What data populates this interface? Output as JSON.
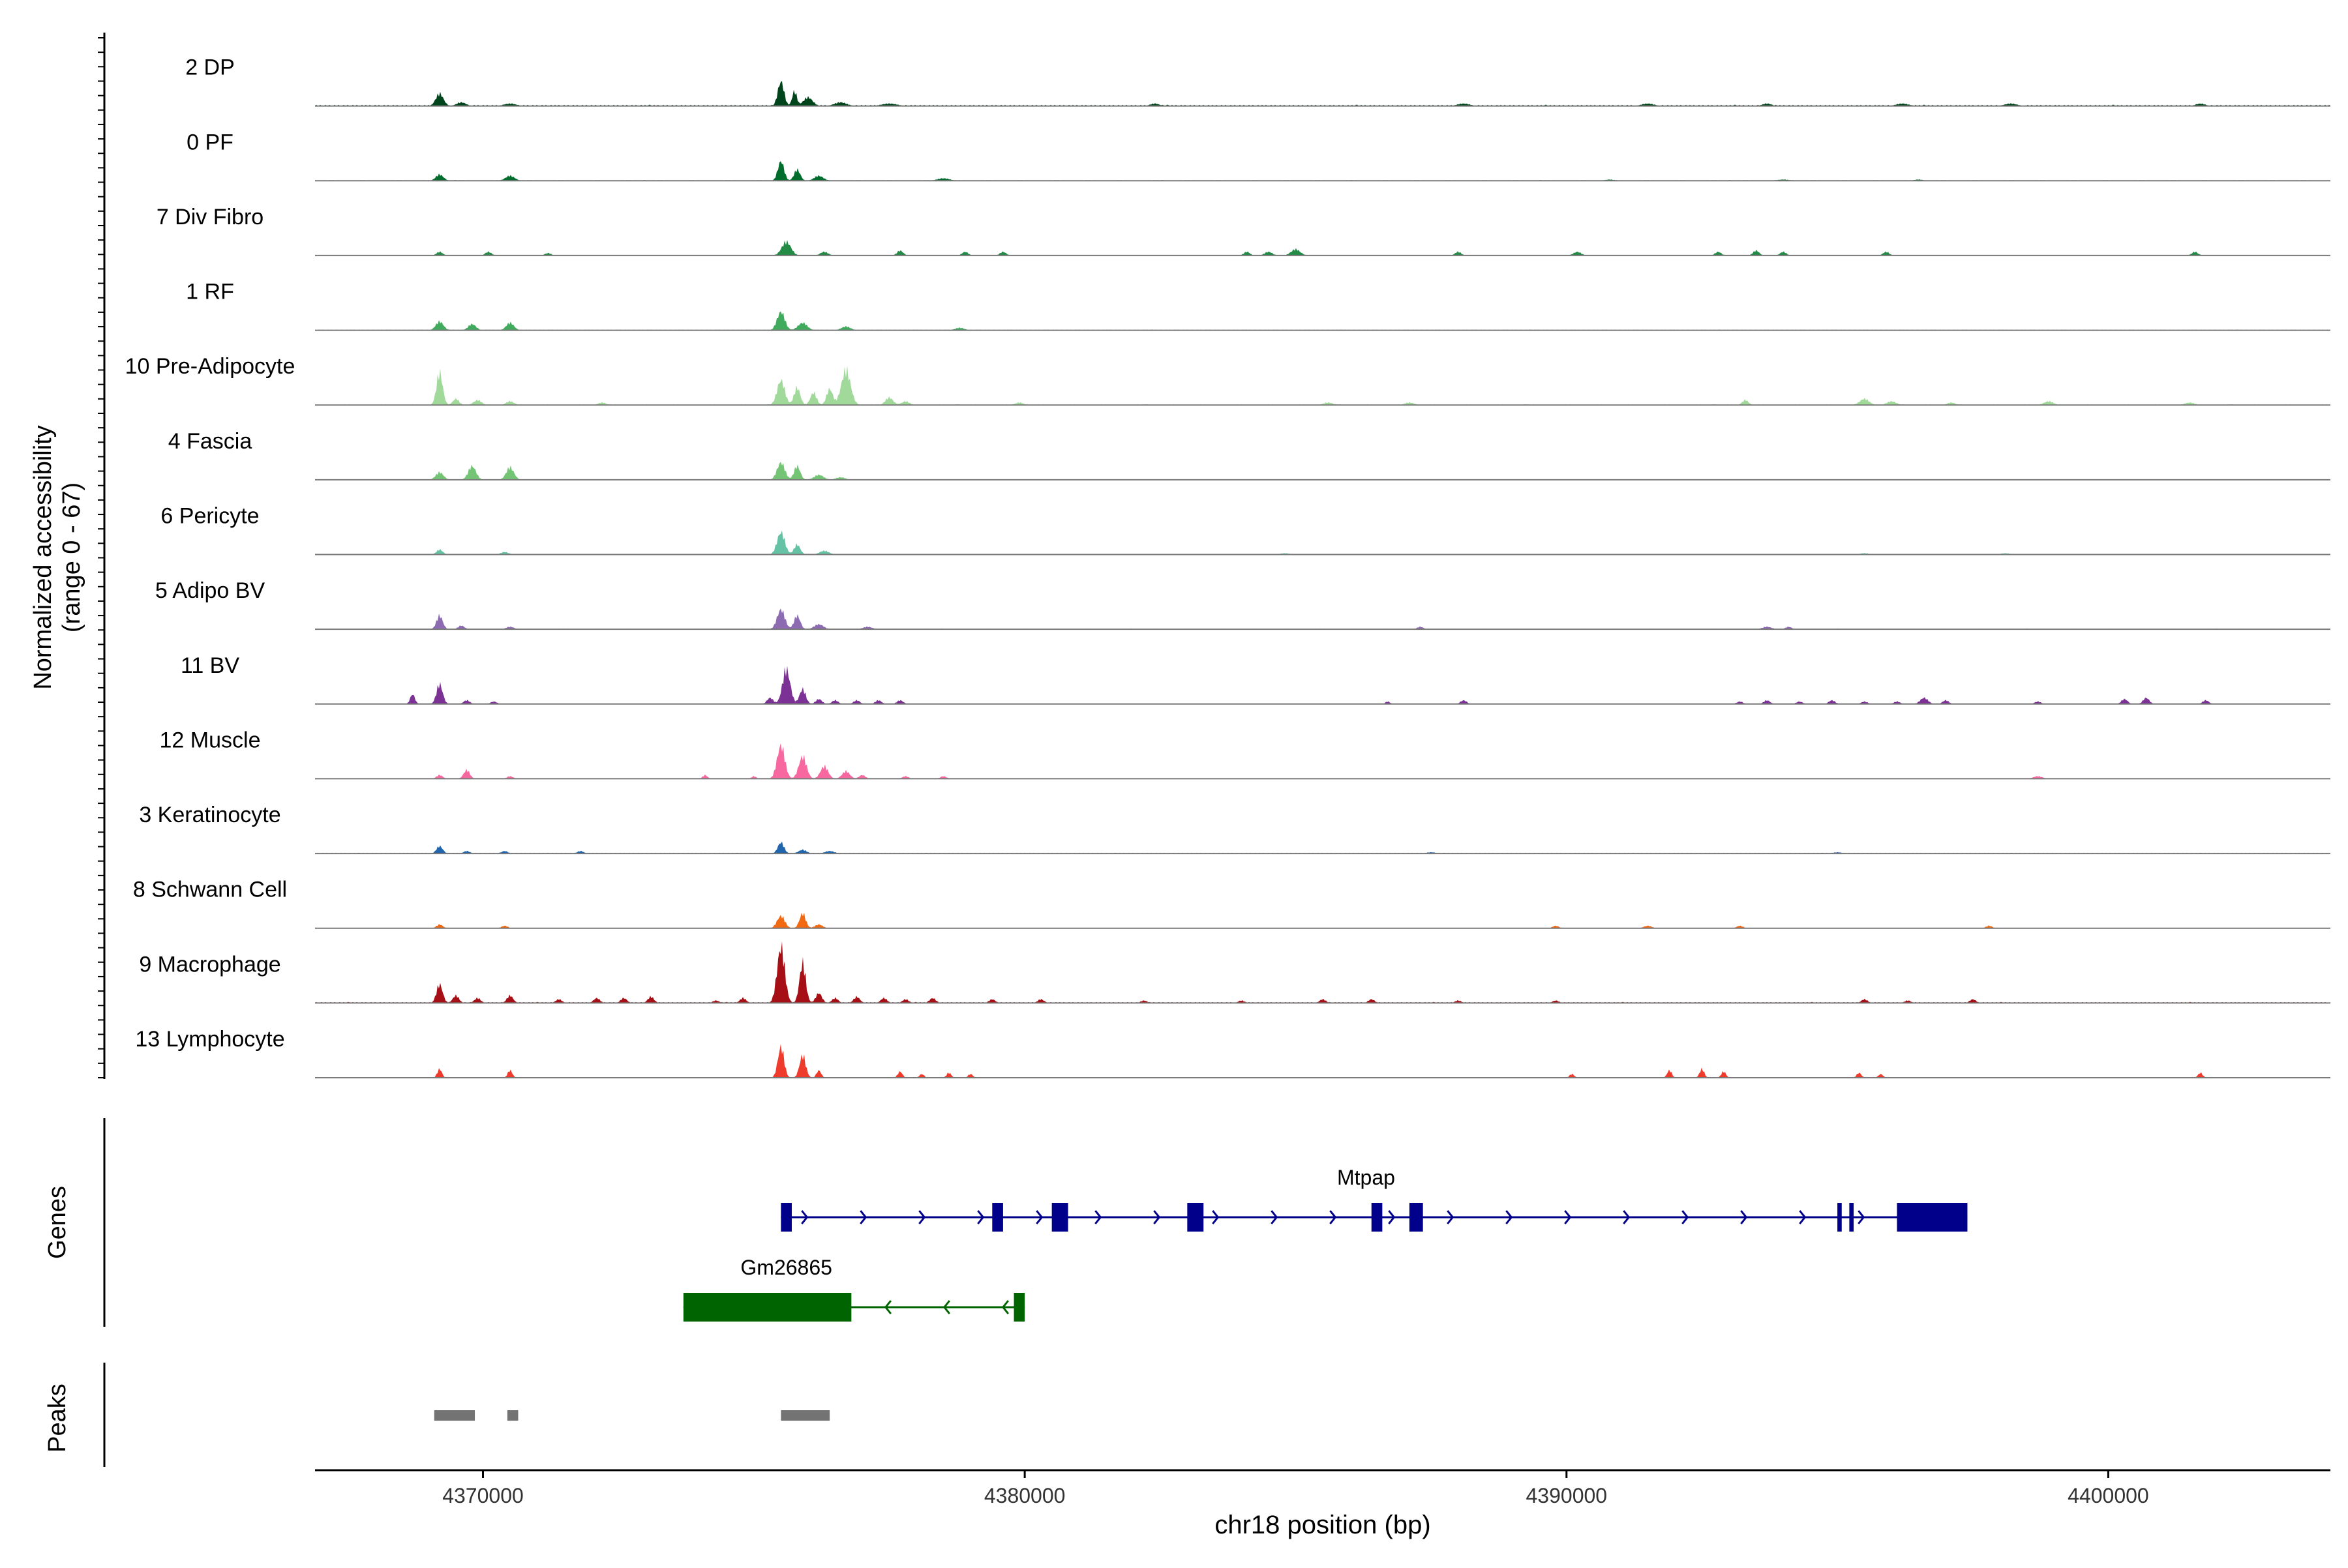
{
  "chart_data": {
    "type": "area",
    "title": "",
    "chromosome": "chr18",
    "xlabel": "chr18 position (bp)",
    "ylabel": "Normalized accessibility",
    "ylabel_range": "(range 0 - 67)",
    "ylim": [
      0,
      67
    ],
    "xlim": [
      4366900,
      4404100
    ],
    "x_ticks": [
      4370000,
      4380000,
      4390000,
      4400000
    ],
    "x_tick_labels": [
      "4370000",
      "4380000",
      "4390000",
      "4400000"
    ],
    "grid": false,
    "legend": "none",
    "track_labels": {
      "genes": "Genes",
      "peaks": "Peaks"
    },
    "series": [
      {
        "name": "2 DP",
        "color": "#00441b",
        "peaks": [
          [
            4369200,
            10,
            250
          ],
          [
            4369600,
            3,
            300
          ],
          [
            4370500,
            2,
            400
          ],
          [
            4375500,
            20,
            200
          ],
          [
            4375750,
            12,
            150
          ],
          [
            4376000,
            7,
            300
          ],
          [
            4376600,
            3,
            400
          ],
          [
            4377500,
            2,
            500
          ],
          [
            4382400,
            2,
            300
          ],
          [
            4388100,
            2,
            400
          ],
          [
            4391500,
            2,
            400
          ],
          [
            4393700,
            2,
            300
          ],
          [
            4396200,
            2,
            400
          ],
          [
            4398200,
            2,
            400
          ],
          [
            4401700,
            2,
            300
          ]
        ],
        "baseline": 1
      },
      {
        "name": "0 PF",
        "color": "#006d2c",
        "peaks": [
          [
            4369200,
            5,
            250
          ],
          [
            4370500,
            4,
            300
          ],
          [
            4375500,
            16,
            200
          ],
          [
            4375800,
            9,
            200
          ],
          [
            4376200,
            4,
            300
          ],
          [
            4378500,
            2,
            400
          ],
          [
            4390800,
            1,
            300
          ],
          [
            4394000,
            1,
            400
          ],
          [
            4396500,
            1,
            300
          ]
        ],
        "baseline": 0.6
      },
      {
        "name": "7 Div Fibro",
        "color": "#238b45",
        "peaks": [
          [
            4369200,
            3,
            200
          ],
          [
            4370100,
            3,
            200
          ],
          [
            4371200,
            2,
            200
          ],
          [
            4375600,
            11,
            300
          ],
          [
            4376300,
            3,
            250
          ],
          [
            4377700,
            4,
            200
          ],
          [
            4378900,
            3,
            200
          ],
          [
            4379600,
            3,
            200
          ],
          [
            4384100,
            3,
            200
          ],
          [
            4384500,
            3,
            250
          ],
          [
            4385000,
            5,
            300
          ],
          [
            4388000,
            3,
            200
          ],
          [
            4390200,
            3,
            250
          ],
          [
            4392800,
            3,
            200
          ],
          [
            4393500,
            4,
            200
          ],
          [
            4394000,
            3,
            200
          ],
          [
            4395900,
            3,
            200
          ],
          [
            4401600,
            3,
            200
          ]
        ],
        "baseline": 0.5
      },
      {
        "name": "1 RF",
        "color": "#41ab5d",
        "peaks": [
          [
            4369200,
            7,
            250
          ],
          [
            4369800,
            5,
            250
          ],
          [
            4370500,
            6,
            250
          ],
          [
            4375500,
            15,
            250
          ],
          [
            4375900,
            6,
            300
          ],
          [
            4376700,
            3,
            300
          ],
          [
            4378800,
            2,
            300
          ]
        ],
        "baseline": 0.6
      },
      {
        "name": "10 Pre-Adipocyte",
        "color": "#a1d99b",
        "peaks": [
          [
            4369200,
            26,
            200
          ],
          [
            4369500,
            5,
            200
          ],
          [
            4369900,
            4,
            250
          ],
          [
            4370500,
            3,
            250
          ],
          [
            4372200,
            2,
            250
          ],
          [
            4375500,
            20,
            250
          ],
          [
            4375800,
            14,
            200
          ],
          [
            4376100,
            10,
            200
          ],
          [
            4376400,
            13,
            200
          ],
          [
            4376700,
            28,
            300
          ],
          [
            4377500,
            6,
            250
          ],
          [
            4377800,
            3,
            250
          ],
          [
            4379900,
            2,
            250
          ],
          [
            4385600,
            2,
            300
          ],
          [
            4387100,
            2,
            300
          ],
          [
            4393300,
            4,
            200
          ],
          [
            4395500,
            5,
            300
          ],
          [
            4396000,
            3,
            300
          ],
          [
            4397100,
            2,
            250
          ],
          [
            4398900,
            3,
            300
          ],
          [
            4401500,
            2,
            300
          ]
        ],
        "baseline": 0.6
      },
      {
        "name": "4 Fascia",
        "color": "#74c476",
        "peaks": [
          [
            4369200,
            6,
            250
          ],
          [
            4369800,
            11,
            250
          ],
          [
            4370500,
            10,
            250
          ],
          [
            4375500,
            14,
            250
          ],
          [
            4375800,
            11,
            200
          ],
          [
            4376200,
            4,
            300
          ],
          [
            4376600,
            2,
            300
          ]
        ],
        "baseline": 0.5
      },
      {
        "name": "6 Pericyte",
        "color": "#66c2a4",
        "peaks": [
          [
            4369200,
            4,
            200
          ],
          [
            4370400,
            2,
            250
          ],
          [
            4375500,
            18,
            250
          ],
          [
            4375800,
            8,
            200
          ],
          [
            4376300,
            3,
            300
          ],
          [
            4384800,
            1,
            300
          ],
          [
            4395500,
            1,
            300
          ],
          [
            4398100,
            1,
            300
          ]
        ],
        "baseline": 0.5
      },
      {
        "name": "5 Adipo BV",
        "color": "#8c6bb1",
        "peaks": [
          [
            4369200,
            11,
            200
          ],
          [
            4369600,
            3,
            200
          ],
          [
            4370500,
            2,
            250
          ],
          [
            4375500,
            16,
            250
          ],
          [
            4375800,
            11,
            200
          ],
          [
            4376200,
            4,
            300
          ],
          [
            4377100,
            2,
            300
          ],
          [
            4387300,
            2,
            200
          ],
          [
            4393700,
            2,
            300
          ],
          [
            4394100,
            2,
            200
          ]
        ],
        "baseline": 0.5
      },
      {
        "name": "11 BV",
        "color": "#7b3294",
        "peaks": [
          [
            4368700,
            8,
            150
          ],
          [
            4369200,
            16,
            200
          ],
          [
            4369700,
            3,
            200
          ],
          [
            4370200,
            2,
            200
          ],
          [
            4375300,
            5,
            200
          ],
          [
            4375600,
            28,
            250
          ],
          [
            4375900,
            12,
            200
          ],
          [
            4376200,
            4,
            200
          ],
          [
            4376500,
            3,
            200
          ],
          [
            4376900,
            3,
            200
          ],
          [
            4377300,
            3,
            200
          ],
          [
            4377700,
            3,
            200
          ],
          [
            4386700,
            2,
            150
          ],
          [
            4388100,
            3,
            200
          ],
          [
            4393200,
            2,
            200
          ],
          [
            4393700,
            3,
            200
          ],
          [
            4394300,
            2,
            200
          ],
          [
            4394900,
            3,
            200
          ],
          [
            4395500,
            2,
            200
          ],
          [
            4396100,
            2,
            200
          ],
          [
            4396600,
            5,
            250
          ],
          [
            4397000,
            3,
            200
          ],
          [
            4398700,
            2,
            200
          ],
          [
            4400300,
            4,
            200
          ],
          [
            4400700,
            5,
            200
          ],
          [
            4401800,
            3,
            200
          ]
        ],
        "baseline": 0.4
      },
      {
        "name": "12 Muscle",
        "color": "#f768a1",
        "peaks": [
          [
            4369200,
            3,
            200
          ],
          [
            4369700,
            7,
            200
          ],
          [
            4370500,
            2,
            200
          ],
          [
            4374100,
            3,
            150
          ],
          [
            4375000,
            2,
            150
          ],
          [
            4375500,
            27,
            250
          ],
          [
            4375900,
            18,
            250
          ],
          [
            4376300,
            10,
            250
          ],
          [
            4376700,
            6,
            250
          ],
          [
            4377000,
            3,
            200
          ],
          [
            4377800,
            2,
            200
          ],
          [
            4378500,
            2,
            200
          ],
          [
            4398700,
            2,
            300
          ]
        ],
        "baseline": 0.4
      },
      {
        "name": "3 Keratinocyte",
        "color": "#2166ac",
        "peaks": [
          [
            4369200,
            6,
            200
          ],
          [
            4369700,
            2,
            200
          ],
          [
            4370400,
            2,
            200
          ],
          [
            4371800,
            2,
            200
          ],
          [
            4375500,
            9,
            200
          ],
          [
            4375900,
            3,
            250
          ],
          [
            4376400,
            2,
            300
          ],
          [
            4387500,
            1,
            300
          ],
          [
            4395000,
            1,
            300
          ]
        ],
        "baseline": 0.6
      },
      {
        "name": "8 Schwann Cell",
        "color": "#f16913",
        "peaks": [
          [
            4369200,
            3,
            200
          ],
          [
            4370400,
            2,
            200
          ],
          [
            4375500,
            10,
            250
          ],
          [
            4375900,
            12,
            200
          ],
          [
            4376200,
            3,
            250
          ],
          [
            4389800,
            2,
            200
          ],
          [
            4391500,
            2,
            250
          ],
          [
            4393200,
            2,
            200
          ],
          [
            4397800,
            2,
            200
          ]
        ],
        "baseline": 0.3
      },
      {
        "name": "9 Macrophage",
        "color": "#a50f15",
        "peaks": [
          [
            4369200,
            15,
            200
          ],
          [
            4369500,
            6,
            200
          ],
          [
            4369900,
            4,
            200
          ],
          [
            4370500,
            6,
            200
          ],
          [
            4371400,
            3,
            200
          ],
          [
            4372100,
            4,
            200
          ],
          [
            4372600,
            4,
            200
          ],
          [
            4373100,
            5,
            200
          ],
          [
            4374300,
            2,
            200
          ],
          [
            4374800,
            4,
            200
          ],
          [
            4375500,
            45,
            250
          ],
          [
            4375900,
            32,
            200
          ],
          [
            4376200,
            8,
            200
          ],
          [
            4376500,
            4,
            200
          ],
          [
            4376900,
            5,
            200
          ],
          [
            4377400,
            4,
            200
          ],
          [
            4377800,
            3,
            200
          ],
          [
            4378300,
            4,
            200
          ],
          [
            4379400,
            3,
            200
          ],
          [
            4380300,
            3,
            200
          ],
          [
            4382200,
            2,
            200
          ],
          [
            4384000,
            2,
            200
          ],
          [
            4385500,
            3,
            200
          ],
          [
            4386400,
            3,
            200
          ],
          [
            4388000,
            2,
            200
          ],
          [
            4389800,
            2,
            200
          ],
          [
            4395500,
            3,
            200
          ],
          [
            4396300,
            2,
            200
          ],
          [
            4397500,
            3,
            200
          ]
        ],
        "baseline": 0.8
      },
      {
        "name": "13 Lymphocyte",
        "color": "#ef3b2c",
        "peaks": [
          [
            4369200,
            7,
            150
          ],
          [
            4370500,
            6,
            150
          ],
          [
            4375500,
            25,
            200
          ],
          [
            4375900,
            18,
            200
          ],
          [
            4376200,
            6,
            150
          ],
          [
            4377700,
            5,
            150
          ],
          [
            4378100,
            3,
            150
          ],
          [
            4379000,
            3,
            150
          ],
          [
            4378600,
            4,
            150
          ],
          [
            4390100,
            3,
            150
          ],
          [
            4391900,
            6,
            150
          ],
          [
            4392500,
            7,
            150
          ],
          [
            4392900,
            5,
            150
          ],
          [
            4395400,
            4,
            150
          ],
          [
            4395800,
            3,
            150
          ],
          [
            4401700,
            4,
            150
          ]
        ],
        "baseline": 0
      }
    ],
    "genes": [
      {
        "name": "Mtpap",
        "strand": "+",
        "color": "#00008b",
        "start": 4375500,
        "end": 4397400,
        "label_pos": 4386300,
        "exons": [
          [
            4375500,
            4375700,
            "small"
          ],
          [
            4379400,
            4379600,
            "small"
          ],
          [
            4380500,
            4380800,
            "small"
          ],
          [
            4383000,
            4383300,
            "small"
          ],
          [
            4386400,
            4386600,
            "small"
          ],
          [
            4387100,
            4387350,
            "small"
          ],
          [
            4395000,
            4395080,
            "thin"
          ],
          [
            4395220,
            4395300,
            "thin"
          ],
          [
            4396100,
            4397400,
            "large"
          ]
        ]
      },
      {
        "name": "Gm26865",
        "strand": "-",
        "color": "#006400",
        "start": 4373700,
        "end": 4380000,
        "label_pos": 4375600,
        "exons": [
          [
            4373700,
            4376800,
            "large"
          ],
          [
            4379800,
            4380000,
            "small"
          ]
        ]
      }
    ],
    "peak_regions": [
      [
        4369100,
        4369850
      ],
      [
        4370450,
        4370650
      ],
      [
        4375500,
        4376400
      ]
    ]
  }
}
